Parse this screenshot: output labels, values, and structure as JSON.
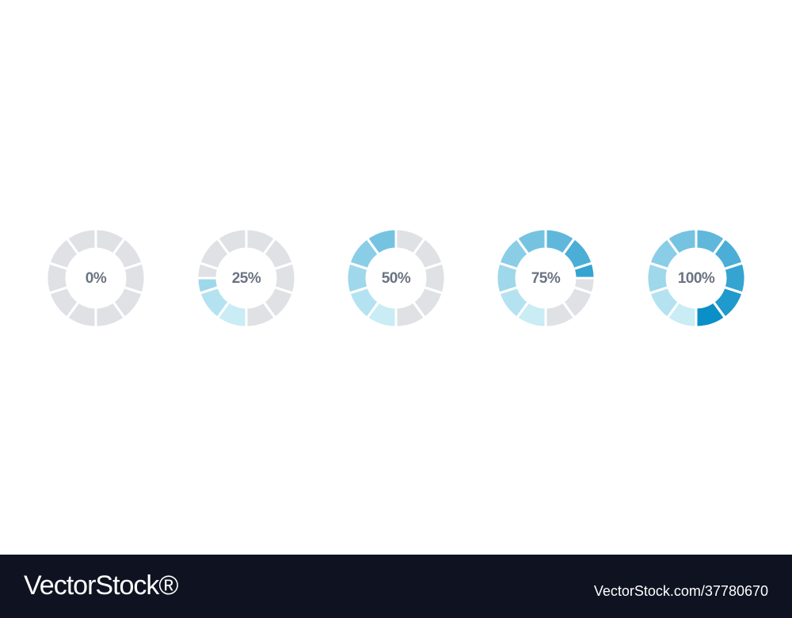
{
  "rings": [
    {
      "label": "0%",
      "value": 0
    },
    {
      "label": "25%",
      "value": 25
    },
    {
      "label": "50%",
      "value": 50
    },
    {
      "label": "75%",
      "value": 75
    },
    {
      "label": "100%",
      "value": 100
    }
  ],
  "footer": {
    "brand": "VectorStock®",
    "url": "VectorStock.com/37780670"
  }
}
